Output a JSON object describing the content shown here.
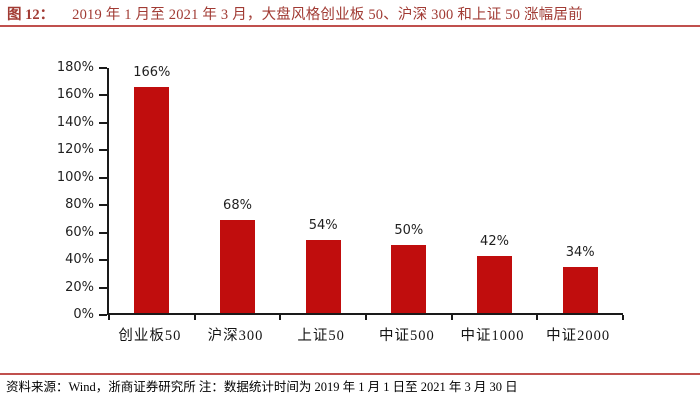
{
  "header": {
    "figure_label": "图 12：",
    "title": "2019 年 1 月至 2021 年 3 月，大盘风格创业板 50、沪深 300 和上证 50 涨幅居前"
  },
  "footer": {
    "source_note": "资料来源：Wind，浙商证券研究所  注：数据统计时间为 2019 年 1 月 1 日至 2021 年 3 月 30 日"
  },
  "colors": {
    "bar": "#c00d0d",
    "title_text": "#a13b34",
    "divider": "#c0504d",
    "axis": "#1a1a1a",
    "label_text": "#1f1f1f"
  },
  "chart_data": {
    "type": "bar",
    "categories": [
      "创业板50",
      "沪深300",
      "上证50",
      "中证500",
      "中证1000",
      "中证2000"
    ],
    "values": [
      166,
      68,
      54,
      50,
      42,
      34
    ],
    "value_labels": [
      "166%",
      "68%",
      "54%",
      "50%",
      "42%",
      "34%"
    ],
    "y_ticks": [
      "180%",
      "160%",
      "140%",
      "120%",
      "100%",
      "80%",
      "60%",
      "40%",
      "20%",
      "0%"
    ],
    "ylim": [
      0,
      180
    ],
    "y_step": 20,
    "title": "",
    "xlabel": "",
    "ylabel": "",
    "grid": false,
    "legend": false,
    "bar_color": "#c00d0d"
  }
}
